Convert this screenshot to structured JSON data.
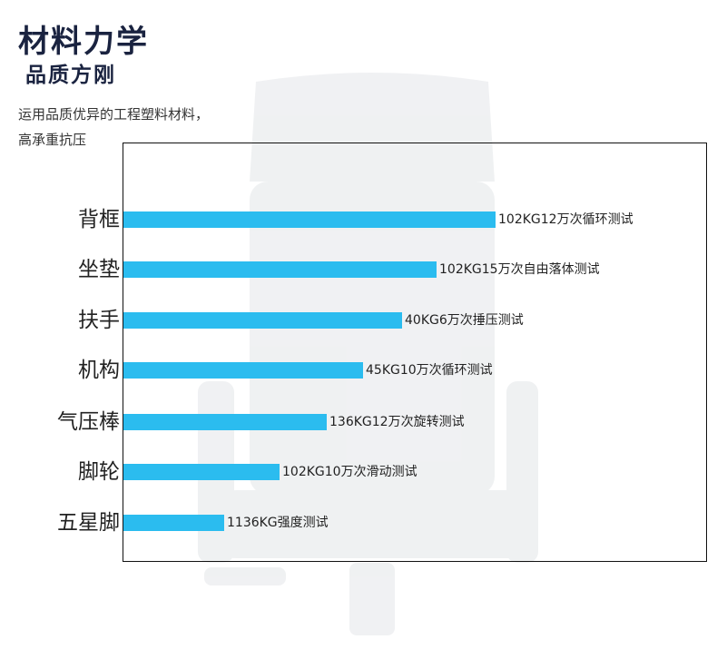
{
  "header": {
    "title": "材料力学",
    "subtitle": "品质方刚",
    "description": [
      "运用品质优异的工程塑料材料，",
      "高承重抗压"
    ]
  },
  "rows": [
    {
      "label": "背框",
      "note": "102KG12万次循环测试"
    },
    {
      "label": "坐垫",
      "note": "102KG15万次自由落体测试"
    },
    {
      "label": "扶手",
      "note": "40KG6万次捶压测试"
    },
    {
      "label": "机构",
      "note": "45KG10万次循环测试"
    },
    {
      "label": "气压棒",
      "note": "136KG12万次旋转测试"
    },
    {
      "label": "脚轮",
      "note": "102KG10万次滑动测试"
    },
    {
      "label": "五星脚",
      "note": "1136KG强度测试"
    }
  ]
}
